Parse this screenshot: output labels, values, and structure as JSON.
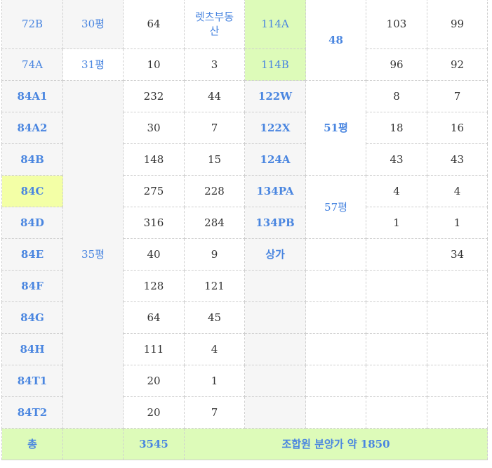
{
  "rows": [
    {
      "type": "72B",
      "size": "30평",
      "units": "64",
      "agency": "렛츠부동산",
      "type2": "114A",
      "size2": "48",
      "c1": "103",
      "c2": "99"
    },
    {
      "type": "74A",
      "size": "31평",
      "units": "10",
      "agency": "3",
      "type2": "114B",
      "c1": "96",
      "c2": "92"
    },
    {
      "type": "84A1",
      "size": "35평",
      "units": "232",
      "agency": "44",
      "type2": "122W",
      "size2": "51평",
      "c1": "8",
      "c2": "7"
    },
    {
      "type": "84A2",
      "units": "30",
      "agency": "7",
      "type2": "122X",
      "c1": "18",
      "c2": "16"
    },
    {
      "type": "84B",
      "units": "148",
      "agency": "15",
      "type2": "124A",
      "c1": "43",
      "c2": "43"
    },
    {
      "type": "84C",
      "units": "275",
      "agency": "228",
      "type2": "134PA",
      "size2": "57평",
      "c1": "4",
      "c2": "4"
    },
    {
      "type": "84D",
      "units": "316",
      "agency": "284",
      "type2": "134PB",
      "c1": "1",
      "c2": "1"
    },
    {
      "type": "84E",
      "units": "40",
      "agency": "9",
      "type2": "상가",
      "c1": "",
      "c2": "34"
    },
    {
      "type": "84F",
      "units": "128",
      "agency": "121"
    },
    {
      "type": "84G",
      "units": "64",
      "agency": "45"
    },
    {
      "type": "84H",
      "units": "111",
      "agency": "4"
    },
    {
      "type": "84T1",
      "units": "20",
      "agency": "1"
    },
    {
      "type": "84T2",
      "units": "20",
      "agency": "7"
    }
  ],
  "total": {
    "label": "총",
    "units": "3545",
    "note": "조합원 분양가 약 1850"
  },
  "colors": {
    "accent": "#4a86e0",
    "highlight_yellow": "#f3ffa6",
    "highlight_green": "#ddfbb9",
    "label_bg": "#f6f6f6"
  }
}
